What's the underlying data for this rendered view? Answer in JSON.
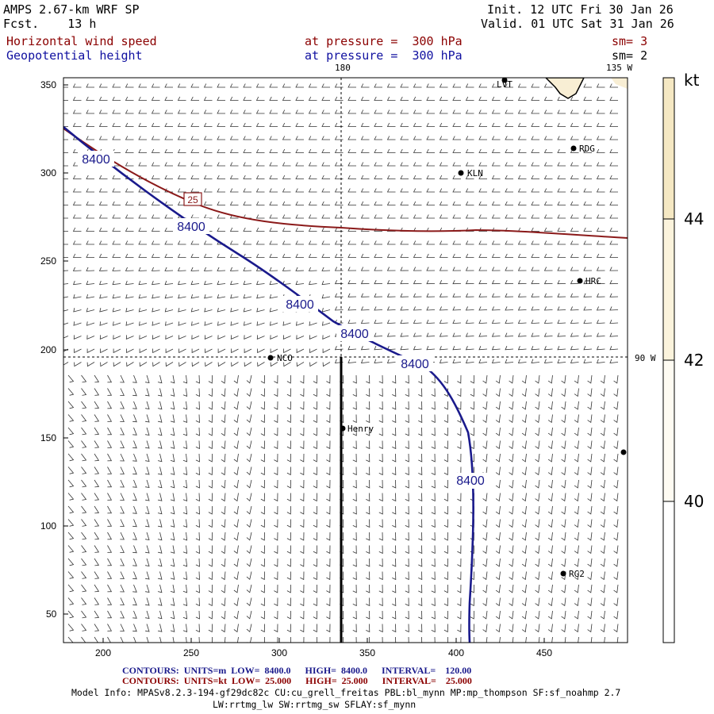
{
  "header": {
    "title": "AMPS 2.67-km WRF SP",
    "fcst_label": "Fcst.",
    "fcst_value": "13 h",
    "init": "Init. 12 UTC Fri 30 Jan 26",
    "valid": "Valid. 01 UTC Sat 31 Jan 26",
    "field1": "Horizontal wind speed",
    "field2": "Geopotential height",
    "pressure1": "at pressure =  300 hPa",
    "pressure2": "at pressure =  300 hPa",
    "sm1": "sm= 3",
    "sm2": "sm= 2"
  },
  "map": {
    "meridian_top": "180",
    "meridian_right_top": "135 W",
    "meridian_right": "90 W",
    "x_ticks": [
      "200",
      "250",
      "300",
      "350",
      "400",
      "450"
    ],
    "y_ticks": [
      "350",
      "300",
      "250",
      "200",
      "150",
      "100",
      "50"
    ],
    "stations": [
      {
        "label": "LVT"
      },
      {
        "label": "RDG"
      },
      {
        "label": "KLN"
      },
      {
        "label": "HRC"
      },
      {
        "label": "NCO"
      },
      {
        "label": "Henry"
      },
      {
        "label": "RG2"
      }
    ],
    "height_contour_labels": [
      "8400",
      "8400",
      "8400",
      "8400",
      "8400",
      "8400"
    ],
    "wind_contour_label": "25"
  },
  "colorbar": {
    "unit": "kt",
    "labels": [
      "44",
      "42",
      "40"
    ],
    "colors": {
      "low": "#ffffff",
      "mid": "#fbf3dc",
      "high": "#f5e8c3"
    }
  },
  "footer": {
    "contours1": "CONTOURS:  UNITS=m  LOW=  8400.0      HIGH=  8400.0      INTERVAL=    120.00",
    "contours2": "CONTOURS:  UNITS=kt  LOW=  25.000      HIGH=  25.000      INTERVAL=    25.000",
    "model_info": "Model Info: MPASv8.2.3-194-gf29dc82c CU:cu_grell_freitas PBL:bl_mynn MP:mp_thompson SF:sf_noahmp 2.7",
    "model_info2": "LW:rrtmg_lw SW:rrtmg_sw SFLAY:sf_mynn"
  },
  "colors": {
    "height_contour": "#1a1a8c",
    "wind_contour": "#8b1a1a",
    "header_red": "#8b0000",
    "header_blue": "#1010a0"
  }
}
